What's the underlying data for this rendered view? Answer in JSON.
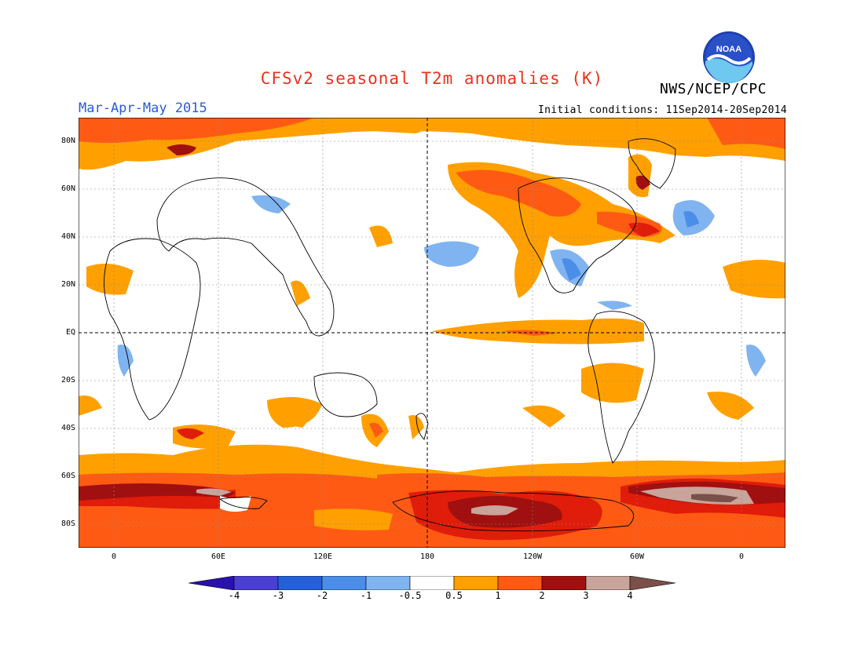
{
  "header": {
    "title": "CFSv2 seasonal T2m anomalies (K)",
    "agency": "NWS/NCEP/CPC",
    "season": "Mar-Apr-May 2015",
    "initial_conditions": "Initial conditions: 11Sep2014-20Sep2014",
    "logo_text": "NOAA"
  },
  "map": {
    "lat_labels": [
      "80N",
      "60N",
      "40N",
      "20N",
      "EQ",
      "20S",
      "40S",
      "60S",
      "80S"
    ],
    "lon_labels": [
      "0",
      "60E",
      "120E",
      "180",
      "120W",
      "60W",
      "0"
    ]
  },
  "colorbar": {
    "labels": [
      "-4",
      "-3",
      "-2",
      "-1",
      "-0.5",
      "0.5",
      "1",
      "2",
      "3",
      "4"
    ],
    "colors": [
      "#2a10b0",
      "#4a3fd0",
      "#2460d8",
      "#4a8ee8",
      "#80b4f0",
      "#ffffff",
      "#ffa000",
      "#ff5a14",
      "#e01c0a",
      "#a01010",
      "#c8a49a",
      "#7a5048"
    ]
  },
  "colors": {
    "title": "#e8331c",
    "season": "#2a5ad6",
    "warm_1": "#ffa000",
    "warm_2": "#ff5a14",
    "warm_3": "#e01c0a",
    "warm_4": "#a01010",
    "warm_5": "#c8a49a",
    "cool_1": "#80b4f0",
    "cool_2": "#4a8ee8"
  }
}
